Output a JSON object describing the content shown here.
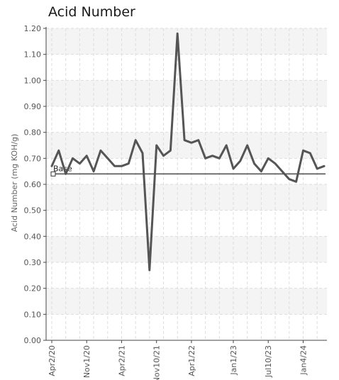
{
  "chart_data": {
    "type": "line",
    "title": "Acid Number",
    "ylabel": "Acid Number (mg KOH/g)",
    "xlabel": "",
    "ylim": [
      0,
      1.2
    ],
    "y_ticks": [
      "0.00",
      "0.10",
      "0.20",
      "0.30",
      "0.40",
      "0.50",
      "0.60",
      "0.70",
      "0.80",
      "0.90",
      "1.00",
      "1.10",
      "1.20"
    ],
    "x_tick_labels": [
      "Apr2/20",
      "Nov1/20",
      "Apr2/21",
      "Nov10/21",
      "Apr1/22",
      "Jan1/23",
      "Jul10/23",
      "Jan4/24"
    ],
    "grid": true,
    "series": [
      {
        "values": [
          0.67,
          0.73,
          0.64,
          0.7,
          0.68,
          0.71,
          0.65,
          0.73,
          0.7,
          0.67,
          0.67,
          0.68,
          0.77,
          0.72,
          0.27,
          0.75,
          0.71,
          0.73,
          1.18,
          0.77,
          0.76,
          0.77,
          0.7,
          0.71,
          0.7,
          0.75,
          0.66,
          0.69,
          0.75,
          0.68,
          0.65,
          0.7,
          0.68,
          0.65,
          0.62,
          0.61,
          0.73,
          0.72,
          0.66,
          0.67
        ]
      }
    ],
    "baseline": {
      "label": "Base",
      "value": 0.64
    },
    "colors": {
      "line": "#555555",
      "baseline": "#555555",
      "grid": "#dddddd",
      "band": "#f4f4f4",
      "axis": "#444444"
    }
  }
}
